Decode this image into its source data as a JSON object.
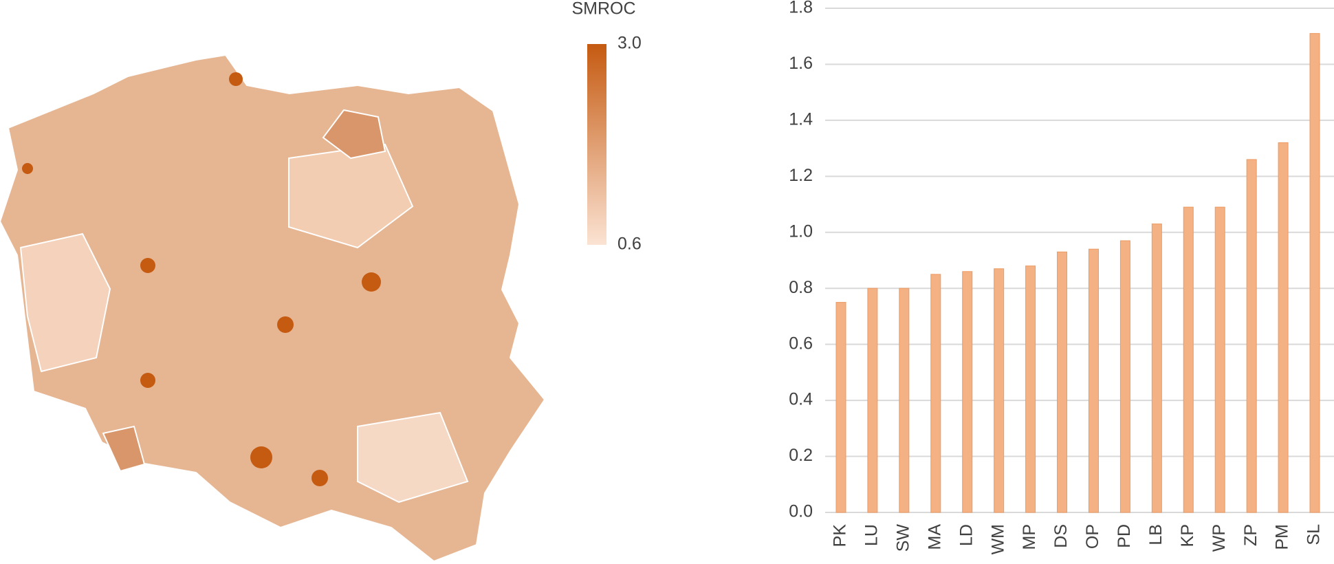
{
  "chart_data": [
    {
      "type": "choropleth",
      "colorbar_title": "SMROC",
      "colorlim": [
        0.6,
        3
      ],
      "colorticks": [
        {
          "value": 3,
          "label": "3.0"
        },
        {
          "value": 0.6,
          "label": "0.6"
        }
      ],
      "colors": [
        "#fbe3d3",
        "#c55a11"
      ]
    },
    {
      "type": "bar",
      "categories": [
        "PK",
        "LU",
        "SW",
        "MA",
        "LD",
        "WM",
        "MP",
        "DS",
        "OP",
        "PD",
        "LB",
        "KP",
        "WP",
        "ZP",
        "PM",
        "SL"
      ],
      "values": [
        0.75,
        0.8,
        0.8,
        0.85,
        0.86,
        0.87,
        0.88,
        0.93,
        0.94,
        0.97,
        1.03,
        1.09,
        1.09,
        1.26,
        1.32,
        1.71
      ],
      "color": "#f4b183",
      "ylim": [
        0,
        1.8
      ],
      "yticks": [
        {
          "value": 0,
          "label": "0.0"
        },
        0.2,
        0.4,
        0.6,
        0.8,
        {
          "value": 1,
          "label": "1.0"
        },
        1.2,
        1.4,
        1.6,
        1.8
      ],
      "grid": true
    }
  ]
}
